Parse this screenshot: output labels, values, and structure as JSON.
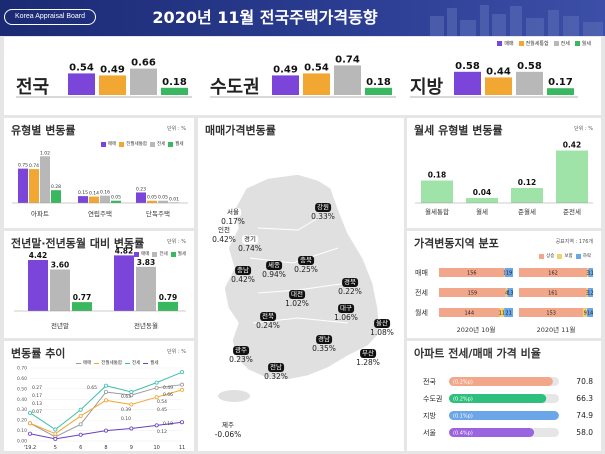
{
  "header": {
    "badge": "Korea Appraisal Board",
    "title": "2020년 11월  전국주택가격동향"
  },
  "colors": {
    "purple": "#7a45d8",
    "orange": "#f2a732",
    "gray": "#b8b8b8",
    "green": "#39b85f",
    "lightgreen": "#9fe3a9",
    "salmon": "#f3a78a",
    "blue": "#6aa6e8"
  },
  "legend_main": [
    "매매",
    "전월세통합",
    "전세",
    "월세"
  ],
  "top_summary": [
    {
      "region": "전국",
      "values": [
        0.54,
        0.49,
        0.66,
        0.18
      ]
    },
    {
      "region": "수도권",
      "values": [
        0.49,
        0.54,
        0.74,
        0.18
      ]
    },
    {
      "region": "지방",
      "values": [
        0.58,
        0.44,
        0.58,
        0.17
      ]
    }
  ],
  "type_change": {
    "title": "유형별 변동률",
    "unit": "단위 : %",
    "categories": [
      "아파트",
      "연립주택",
      "단독주택"
    ],
    "chart_data": {
      "type": "bar",
      "categories": [
        "아파트",
        "연립주택",
        "단독주택"
      ],
      "series": [
        {
          "name": "매매",
          "values": [
            0.75,
            0.15,
            0.23
          ]
        },
        {
          "name": "전월세통합",
          "values": [
            0.74,
            0.14,
            0.05
          ]
        },
        {
          "name": "전세",
          "values": [
            1.02,
            0.16,
            0.05
          ]
        },
        {
          "name": "월세",
          "values": [
            0.28,
            0.05,
            0.01
          ]
        }
      ]
    }
  },
  "yearend": {
    "title": "전년말·전년동월 대비 변동률",
    "unit": "단위 : %",
    "categories": [
      "전년말",
      "전년동월"
    ],
    "chart_data": {
      "type": "bar",
      "categories": [
        "전년말",
        "전년동월"
      ],
      "series": [
        {
          "name": "매매",
          "values": [
            4.42,
            4.82
          ]
        },
        {
          "name": "전세",
          "values": [
            3.6,
            3.83
          ]
        },
        {
          "name": "월세",
          "values": [
            0.77,
            0.79
          ]
        }
      ]
    }
  },
  "trend": {
    "title": "변동률 추이",
    "unit": "단위 : %",
    "xticks": [
      "'19.2",
      "5",
      "6",
      "8",
      "9",
      "10",
      "11"
    ],
    "yticks": [
      "0.00",
      "0.10",
      "0.20",
      "0.30",
      "0.40",
      "0.50",
      "0.60",
      "0.70"
    ],
    "chart_data": {
      "type": "line",
      "x": [
        "'19.2",
        "5",
        "6",
        "8",
        "9",
        "10",
        "11"
      ],
      "ylim": [
        0,
        0.7
      ],
      "series": [
        {
          "name": "매매",
          "values": [
            0.17,
            0.04,
            0.16,
            0.47,
            0.44,
            0.51,
            0.54
          ]
        },
        {
          "name": "전월세통합",
          "values": [
            0.17,
            0.07,
            0.24,
            0.39,
            0.35,
            0.42,
            0.49
          ]
        },
        {
          "name": "전세",
          "values": [
            0.27,
            0.11,
            0.3,
            0.53,
            0.47,
            0.56,
            0.66
          ]
        },
        {
          "name": "월세",
          "values": [
            0.07,
            0.02,
            0.06,
            0.1,
            0.12,
            0.15,
            0.18
          ]
        }
      ],
      "point_labels": [
        "0.27",
        "0.17",
        "0.13",
        "0.07",
        "0.65",
        "0.63",
        "0.54",
        "0.45",
        "0.39",
        "0.10",
        "0.18",
        "0.12",
        "0.66",
        "0.49"
      ]
    }
  },
  "map": {
    "title": "매매가격변동률",
    "regions": [
      {
        "name": "서울",
        "value": "0.17%",
        "style": "light"
      },
      {
        "name": "강원",
        "value": "0.33%",
        "style": "dark"
      },
      {
        "name": "인천",
        "value": "0.42%",
        "style": "light"
      },
      {
        "name": "경기",
        "value": "0.74%",
        "style": "light"
      },
      {
        "name": "충북",
        "value": "0.25%",
        "style": "dark"
      },
      {
        "name": "충남",
        "value": "0.42%",
        "style": "dark"
      },
      {
        "name": "세종",
        "value": "0.94%",
        "style": "dark"
      },
      {
        "name": "대전",
        "value": "1.02%",
        "style": "dark"
      },
      {
        "name": "경북",
        "value": "0.22%",
        "style": "dark"
      },
      {
        "name": "대구",
        "value": "1.06%",
        "style": "dark"
      },
      {
        "name": "전북",
        "value": "0.24%",
        "style": "dark"
      },
      {
        "name": "울산",
        "value": "1.08%",
        "style": "dark"
      },
      {
        "name": "경남",
        "value": "0.35%",
        "style": "dark"
      },
      {
        "name": "광주",
        "value": "0.23%",
        "style": "dark"
      },
      {
        "name": "부산",
        "value": "1.28%",
        "style": "dark"
      },
      {
        "name": "전남",
        "value": "0.32%",
        "style": "dark"
      },
      {
        "name": "제주",
        "value": "-0.06%",
        "style": "light"
      }
    ]
  },
  "monthly": {
    "title": "월세 유형별 변동률",
    "unit": "단위 : %",
    "chart_data": {
      "type": "bar",
      "categories": [
        "월세통합",
        "월세",
        "준월세",
        "준전세"
      ],
      "values": [
        0.18,
        0.04,
        0.12,
        0.42
      ]
    }
  },
  "distribution": {
    "title": "가격변동지역 분포",
    "unit": "공표지역 : 176개",
    "legend": [
      "상승",
      "보합",
      "하락"
    ],
    "rows": [
      "매매",
      "전세",
      "월세"
    ],
    "columns": [
      "2020년 10월",
      "2020년 11월"
    ],
    "chart_data": {
      "type": "bar",
      "stacked": true,
      "categories": [
        "매매",
        "전세",
        "월세"
      ],
      "groups": [
        "2020년 10월",
        "2020년 11월"
      ],
      "data": [
        [
          [
            156,
            1,
            19
          ],
          [
            162,
            3,
            11
          ]
        ],
        [
          [
            159,
            4,
            13
          ],
          [
            161,
            3,
            12
          ]
        ],
        [
          [
            144,
            11,
            21
          ],
          [
            153,
            9,
            14
          ]
        ]
      ]
    }
  },
  "ratio": {
    "title": "아파트 전세/매매 가격 비율",
    "rows": [
      {
        "region": "전국",
        "delta": "(0.2%p)",
        "value": "70.8",
        "pct": 70.8
      },
      {
        "region": "수도권",
        "delta": "(0.2%p)",
        "value": "66.3",
        "pct": 66.3
      },
      {
        "region": "지방",
        "delta": "(0.1%p)",
        "value": "74.9",
        "pct": 74.9
      },
      {
        "region": "서울",
        "delta": "(0.4%p)",
        "value": "58.0",
        "pct": 58.0
      }
    ]
  }
}
